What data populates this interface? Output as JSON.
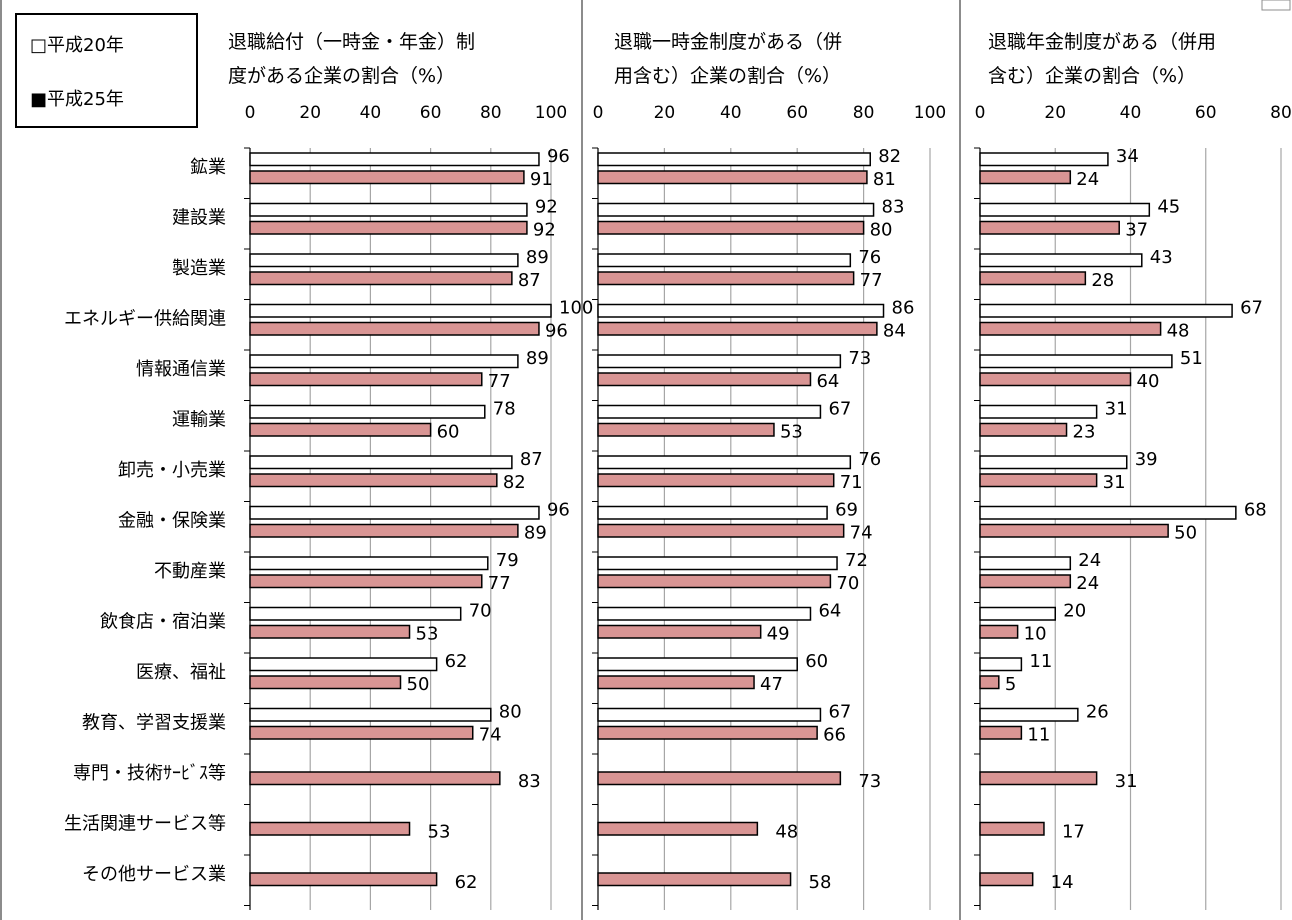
{
  "chart_data": {
    "type": "bar",
    "orientation": "horizontal",
    "categories": [
      "鉱業",
      "建設業",
      "製造業",
      "エネルギー供給関連",
      "情報通信業",
      "運輸業",
      "卸売・小売業",
      "金融・保険業",
      "不動産業",
      "飲食店・宿泊業",
      "医療、福祉",
      "教育、学習支援業",
      "専門・技術ｻｰﾋﾞｽ等",
      "生活関連サービス等",
      "その他サービス業"
    ],
    "legend": {
      "position": "top-left",
      "items": [
        {
          "label": "□平成20年",
          "color": "#ffffff"
        },
        {
          "label": "■平成25年",
          "color": "#d99594"
        }
      ]
    },
    "colors": {
      "h20": "#ffffff",
      "h25": "#d99594",
      "edge": "#000000",
      "grid": "#a6a6a6"
    },
    "panels": [
      {
        "title_lines": [
          "退職給付（一時金・年金）制",
          "度がある企業の割合（%）"
        ],
        "xlim": [
          0,
          100
        ],
        "ticks": [
          "0",
          "20",
          "40",
          "60",
          "80",
          "100"
        ],
        "series": [
          {
            "name": "平成20年",
            "values": [
              96,
              92,
              89,
              100,
              89,
              78,
              87,
              96,
              79,
              70,
              62,
              80,
              null,
              null,
              null
            ]
          },
          {
            "name": "平成25年",
            "values": [
              91,
              92,
              87,
              96,
              77,
              60,
              82,
              89,
              77,
              53,
              50,
              74,
              83,
              53,
              62
            ]
          }
        ]
      },
      {
        "title_lines": [
          "退職一時金制度がある（併",
          "用含む）企業の割合（%）"
        ],
        "xlim": [
          0,
          100
        ],
        "ticks": [
          "0",
          "20",
          "40",
          "60",
          "80",
          "100"
        ],
        "series": [
          {
            "name": "平成20年",
            "values": [
              82,
              83,
              76,
              86,
              73,
              67,
              76,
              69,
              72,
              64,
              60,
              67,
              null,
              null,
              null
            ]
          },
          {
            "name": "平成25年",
            "values": [
              81,
              80,
              77,
              84,
              64,
              53,
              71,
              74,
              70,
              49,
              47,
              66,
              73,
              48,
              58
            ]
          }
        ]
      },
      {
        "title_lines": [
          "退職年金制度がある（併用",
          "含む）企業の割合（%）"
        ],
        "xlim": [
          0,
          80
        ],
        "ticks": [
          "0",
          "20",
          "40",
          "60",
          "80"
        ],
        "series": [
          {
            "name": "平成20年",
            "values": [
              34,
              45,
              43,
              67,
              51,
              31,
              39,
              68,
              24,
              20,
              11,
              26,
              null,
              null,
              null
            ]
          },
          {
            "name": "平成25年",
            "values": [
              24,
              37,
              28,
              48,
              40,
              23,
              31,
              50,
              24,
              10,
              5,
              11,
              31,
              17,
              14
            ]
          }
        ]
      }
    ]
  }
}
